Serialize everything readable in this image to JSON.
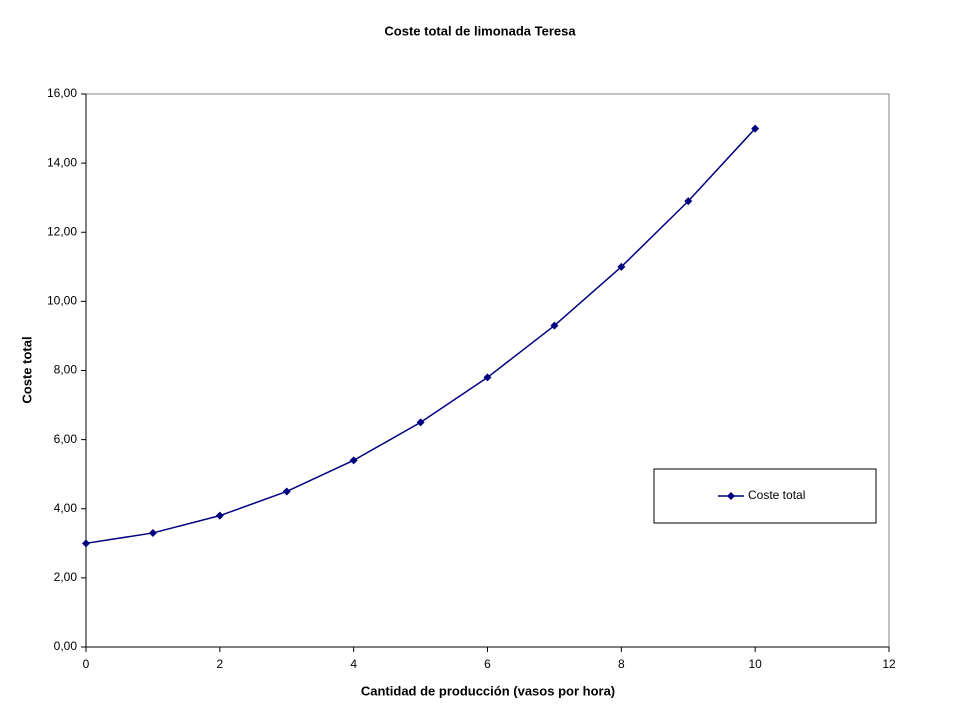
{
  "chart_data": {
    "type": "line",
    "title": "Coste total de limonada Teresa",
    "x_label": "Cantidad de producción (vasos por hora)",
    "y_label": "Coste total",
    "x": [
      0,
      1,
      2,
      3,
      4,
      5,
      6,
      7,
      8,
      9,
      10
    ],
    "series": [
      {
        "name": "Coste total",
        "color": "#000080",
        "values": [
          3.0,
          3.3,
          3.8,
          4.5,
          5.4,
          6.5,
          7.8,
          9.3,
          11.0,
          12.9,
          15.0
        ]
      }
    ],
    "xlim": [
      0,
      12
    ],
    "xticks": [
      0,
      2,
      4,
      6,
      8,
      10,
      12
    ],
    "ylim": [
      0,
      16
    ],
    "yticks": [
      {
        "value": 0,
        "label": "0,00"
      },
      {
        "value": 2,
        "label": "2,00"
      },
      {
        "value": 4,
        "label": "4,00"
      },
      {
        "value": 6,
        "label": "6,00"
      },
      {
        "value": 8,
        "label": "8,00"
      },
      {
        "value": 10,
        "label": "10,00"
      },
      {
        "value": 12,
        "label": "12,00"
      },
      {
        "value": 14,
        "label": "14,00"
      },
      {
        "value": 16,
        "label": "16,00"
      }
    ],
    "grid": false,
    "legend": "right"
  }
}
